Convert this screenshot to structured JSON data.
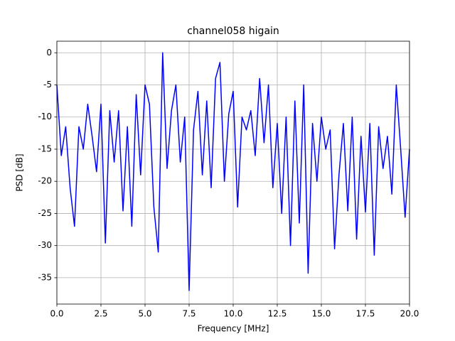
{
  "chart_data": {
    "type": "line",
    "title": "channel058 higain",
    "x_label": "Frequency [MHz]",
    "y_label": "PSD [dB]",
    "xlim": [
      0,
      20
    ],
    "ylim": [
      -39.1,
      1.8
    ],
    "xticks": [
      {
        "value": 0,
        "label": "0.0"
      },
      2.5,
      {
        "value": 5,
        "label": "5.0"
      },
      7.5,
      {
        "value": 10,
        "label": "10.0"
      },
      12.5,
      {
        "value": 15,
        "label": "15.0"
      },
      17.5,
      {
        "value": 20,
        "label": "20.0"
      }
    ],
    "yticks": [
      0,
      -5,
      -10,
      -15,
      -20,
      -25,
      -30,
      -35
    ],
    "grid": true,
    "x": [
      0,
      0.25,
      0.5,
      0.75,
      1,
      1.25,
      1.5,
      1.75,
      2,
      2.25,
      2.5,
      2.75,
      3,
      3.25,
      3.5,
      3.75,
      4,
      4.25,
      4.5,
      4.75,
      5,
      5.25,
      5.5,
      5.75,
      6,
      6.25,
      6.5,
      6.75,
      7,
      7.25,
      7.5,
      7.75,
      8,
      8.25,
      8.5,
      8.75,
      9,
      9.25,
      9.5,
      9.75,
      10,
      10.25,
      10.5,
      10.75,
      11,
      11.25,
      11.5,
      11.75,
      12,
      12.25,
      12.5,
      12.75,
      13,
      13.25,
      13.5,
      13.75,
      14,
      14.25,
      14.5,
      14.75,
      15,
      15.25,
      15.5,
      15.75,
      16,
      16.25,
      16.5,
      16.75,
      17,
      17.25,
      17.5,
      17.75,
      18,
      18.25,
      18.5,
      18.75,
      19,
      19.25,
      19.5,
      19.75,
      20
    ],
    "series": [
      {
        "name": "PSD",
        "color": "#0000ff",
        "values": [
          -5,
          -16,
          -11.5,
          -21,
          -27,
          -11.5,
          -15,
          -8,
          -13,
          -18.5,
          -8,
          -29.6,
          -9,
          -17,
          -9,
          -24.6,
          -11.5,
          -27,
          -6.5,
          -19,
          -5,
          -8,
          -24,
          -31,
          0,
          -18,
          -9,
          -5,
          -17,
          -10,
          -37,
          -12,
          -6,
          -19,
          -7.5,
          -21,
          -4,
          -1.5,
          -20,
          -9.5,
          -6,
          -24,
          -10,
          -12,
          -9,
          -16,
          -4,
          -14,
          -5,
          -21,
          -11,
          -25,
          -10,
          -30,
          -7.5,
          -26.5,
          -5,
          -34.3,
          -11,
          -20,
          -10,
          -15,
          -12,
          -30.5,
          -19,
          -11,
          -24.6,
          -10,
          -29,
          -13,
          -24.8,
          -11,
          -31.5,
          -11.5,
          -18,
          -13,
          -22,
          -5,
          -15,
          -25.6,
          -15
        ]
      }
    ]
  }
}
